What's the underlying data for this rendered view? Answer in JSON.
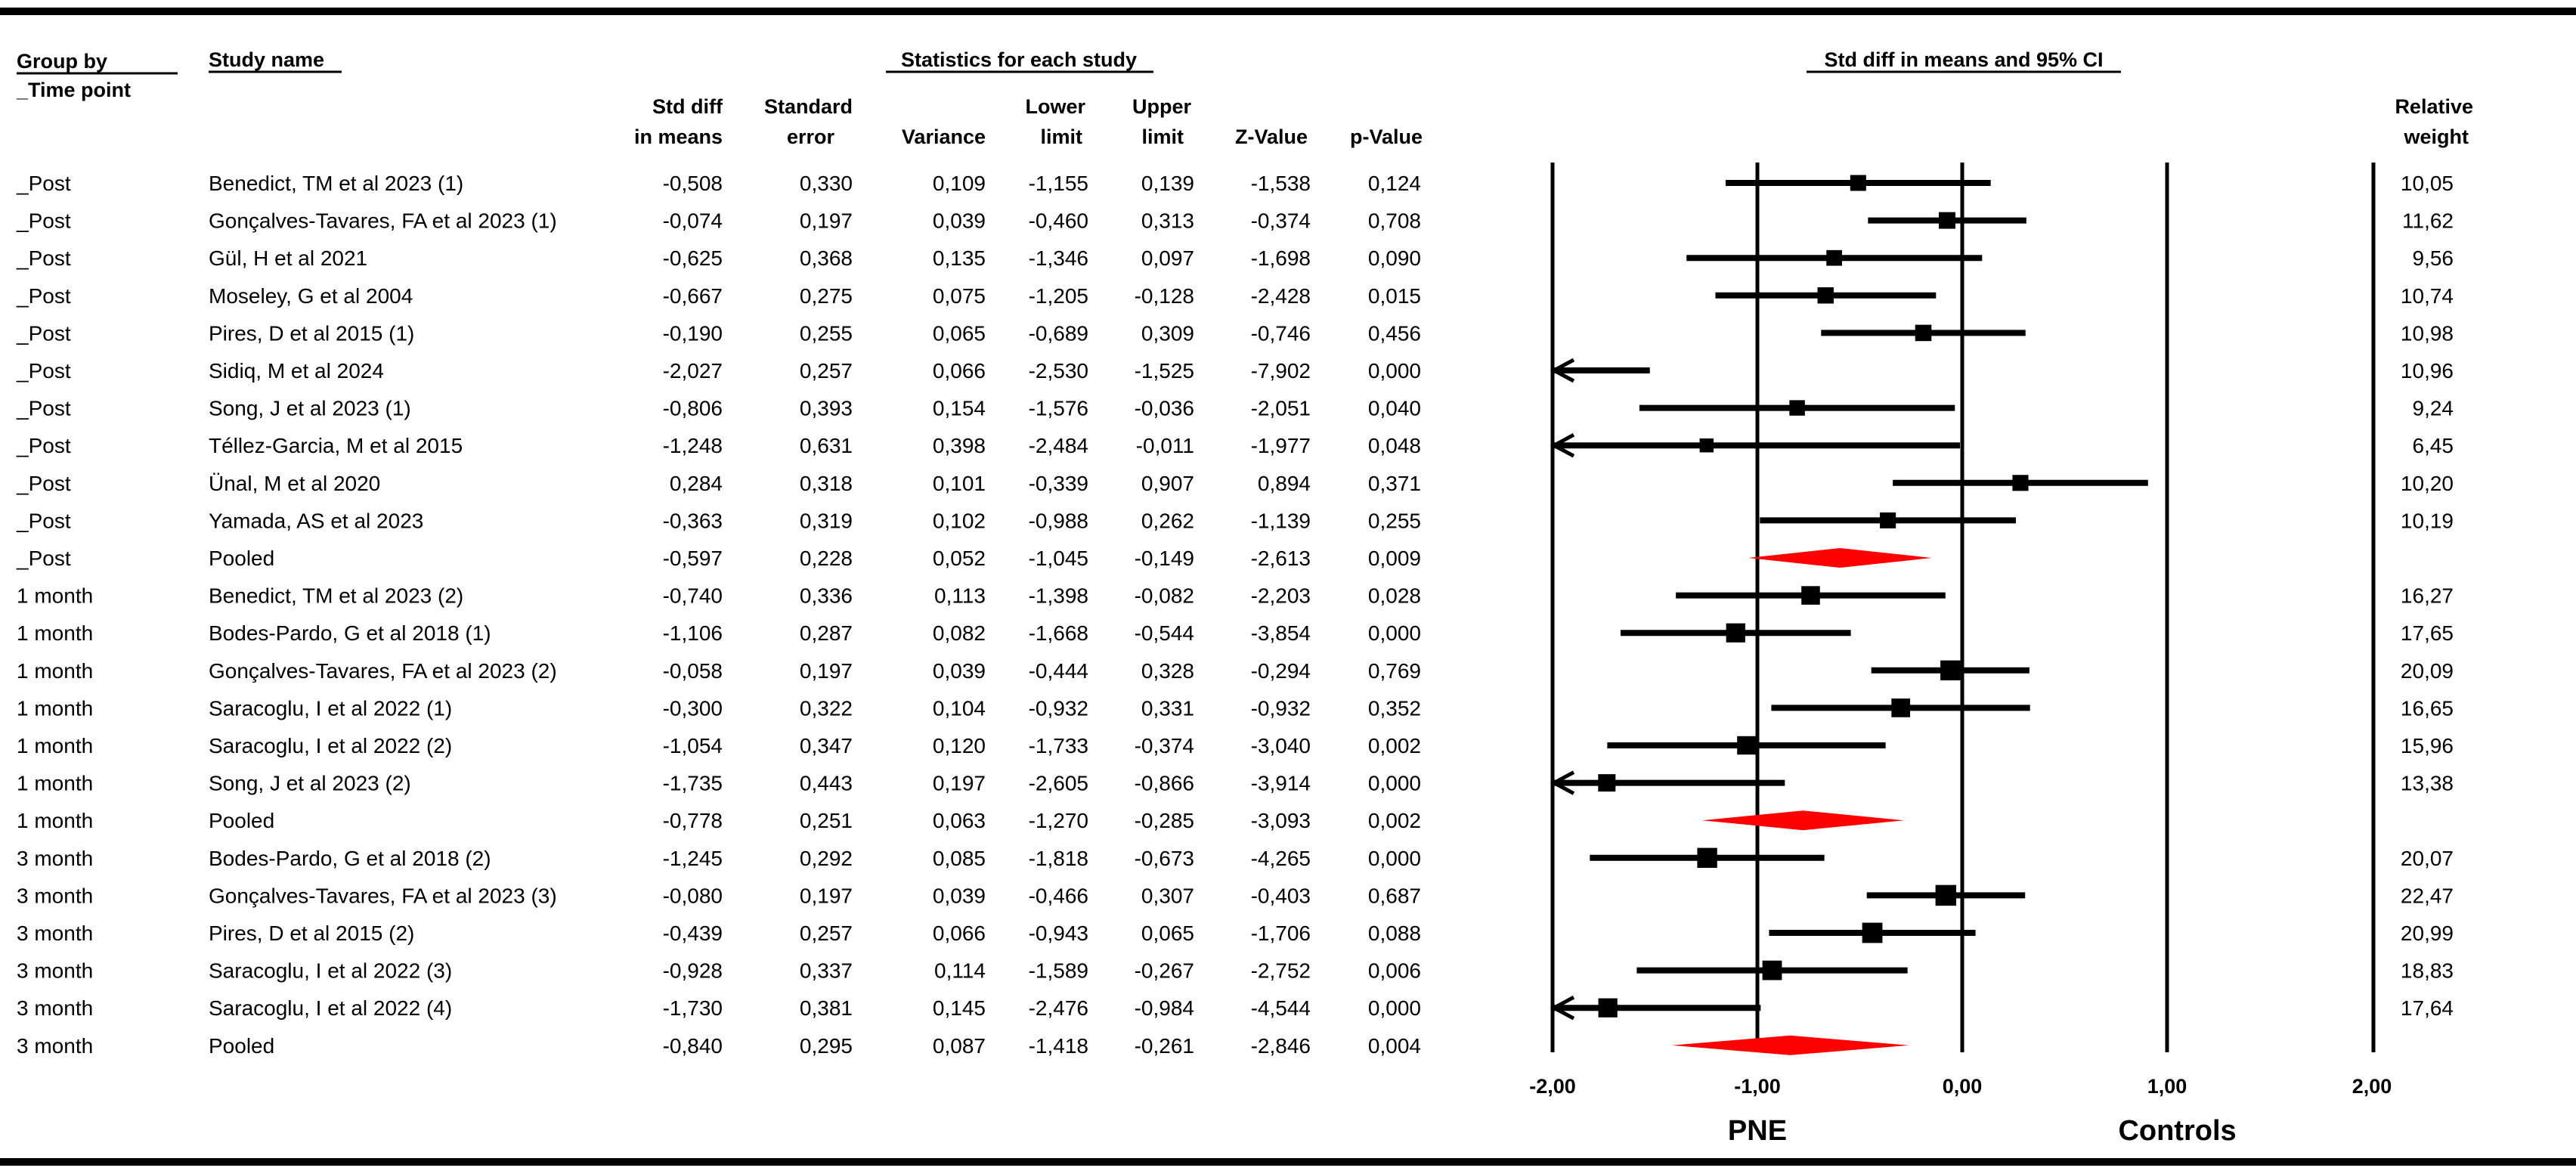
{
  "chart_data": {
    "type": "forest",
    "headers": {
      "group": "Group by",
      "group_sub": "_Time point",
      "study": "Study name",
      "stats": "Statistics for each study",
      "plot": "Std diff in means and 95% CI",
      "std_diff_1": "Std diff",
      "std_diff_2": "in means",
      "se_1": "Standard",
      "se_2": "error",
      "variance": "Variance",
      "lower_1": "Lower",
      "lower_2": "limit",
      "upper_1": "Upper",
      "upper_2": "limit",
      "z": "Z-Value",
      "p": "p-Value",
      "weight_1": "Relative",
      "weight_2": "weight"
    },
    "x_axis": {
      "min": -2,
      "max": 2,
      "ticks": [
        -2,
        -1,
        0,
        1,
        2
      ],
      "tick_labels": [
        "-2,00",
        "-1,00",
        "0,00",
        "1,00",
        "2,00"
      ]
    },
    "favours_left": "PNE",
    "favours_right": "Controls",
    "rows": [
      {
        "group": "_Post",
        "study": "Benedict, TM et al 2023 (1)",
        "smd": "-0,508",
        "se": "0,330",
        "var": "0,109",
        "lower": "-1,155",
        "upper": "0,139",
        "z": "-1,538",
        "p": "0,124",
        "weight": "10,05",
        "kind": "study",
        "v": [
          -0.508,
          -1.155,
          0.139,
          10.05
        ]
      },
      {
        "group": "_Post",
        "study": "Gonçalves-Tavares, FA et al 2023 (1)",
        "smd": "-0,074",
        "se": "0,197",
        "var": "0,039",
        "lower": "-0,460",
        "upper": "0,313",
        "z": "-0,374",
        "p": "0,708",
        "weight": "11,62",
        "kind": "study",
        "v": [
          -0.074,
          -0.46,
          0.313,
          11.62
        ]
      },
      {
        "group": "_Post",
        "study": "Gül, H et al 2021",
        "smd": "-0,625",
        "se": "0,368",
        "var": "0,135",
        "lower": "-1,346",
        "upper": "0,097",
        "z": "-1,698",
        "p": "0,090",
        "weight": "9,56",
        "kind": "study",
        "v": [
          -0.625,
          -1.346,
          0.097,
          9.56
        ]
      },
      {
        "group": "_Post",
        "study": "Moseley, G et al 2004",
        "smd": "-0,667",
        "se": "0,275",
        "var": "0,075",
        "lower": "-1,205",
        "upper": "-0,128",
        "z": "-2,428",
        "p": "0,015",
        "weight": "10,74",
        "kind": "study",
        "v": [
          -0.667,
          -1.205,
          -0.128,
          10.74
        ]
      },
      {
        "group": "_Post",
        "study": "Pires, D et al 2015 (1)",
        "smd": "-0,190",
        "se": "0,255",
        "var": "0,065",
        "lower": "-0,689",
        "upper": "0,309",
        "z": "-0,746",
        "p": "0,456",
        "weight": "10,98",
        "kind": "study",
        "v": [
          -0.19,
          -0.689,
          0.309,
          10.98
        ]
      },
      {
        "group": "_Post",
        "study": "Sidiq, M et al 2024",
        "smd": "-2,027",
        "se": "0,257",
        "var": "0,066",
        "lower": "-2,530",
        "upper": "-1,525",
        "z": "-7,902",
        "p": "0,000",
        "weight": "10,96",
        "kind": "study",
        "v": [
          -2.027,
          -2.53,
          -1.525,
          10.96
        ]
      },
      {
        "group": "_Post",
        "study": "Song, J et al 2023 (1)",
        "smd": "-0,806",
        "se": "0,393",
        "var": "0,154",
        "lower": "-1,576",
        "upper": "-0,036",
        "z": "-2,051",
        "p": "0,040",
        "weight": "9,24",
        "kind": "study",
        "v": [
          -0.806,
          -1.576,
          -0.036,
          9.24
        ]
      },
      {
        "group": "_Post",
        "study": "Téllez-Garcia, M et al 2015",
        "smd": "-1,248",
        "se": "0,631",
        "var": "0,398",
        "lower": "-2,484",
        "upper": "-0,011",
        "z": "-1,977",
        "p": "0,048",
        "weight": "6,45",
        "kind": "study",
        "v": [
          -1.248,
          -2.484,
          -0.011,
          6.45
        ]
      },
      {
        "group": "_Post",
        "study": "Ünal, M et al 2020",
        "smd": "0,284",
        "se": "0,318",
        "var": "0,101",
        "lower": "-0,339",
        "upper": "0,907",
        "z": "0,894",
        "p": "0,371",
        "weight": "10,20",
        "kind": "study",
        "v": [
          0.284,
          -0.339,
          0.907,
          10.2
        ]
      },
      {
        "group": "_Post",
        "study": "Yamada, AS et al 2023",
        "smd": "-0,363",
        "se": "0,319",
        "var": "0,102",
        "lower": "-0,988",
        "upper": "0,262",
        "z": "-1,139",
        "p": "0,255",
        "weight": "10,19",
        "kind": "study",
        "v": [
          -0.363,
          -0.988,
          0.262,
          10.19
        ]
      },
      {
        "group": "_Post",
        "study": "Pooled",
        "smd": "-0,597",
        "se": "0,228",
        "var": "0,052",
        "lower": "-1,045",
        "upper": "-0,149",
        "z": "-2,613",
        "p": "0,009",
        "weight": "",
        "kind": "pooled",
        "v": [
          -0.597,
          -1.045,
          -0.149,
          0
        ]
      },
      {
        "group": "1 month",
        "study": "Benedict, TM et al 2023 (2)",
        "smd": "-0,740",
        "se": "0,336",
        "var": "0,113",
        "lower": "-1,398",
        "upper": "-0,082",
        "z": "-2,203",
        "p": "0,028",
        "weight": "16,27",
        "kind": "study",
        "v": [
          -0.74,
          -1.398,
          -0.082,
          16.27
        ]
      },
      {
        "group": "1 month",
        "study": "Bodes-Pardo, G et al 2018 (1)",
        "smd": "-1,106",
        "se": "0,287",
        "var": "0,082",
        "lower": "-1,668",
        "upper": "-0,544",
        "z": "-3,854",
        "p": "0,000",
        "weight": "17,65",
        "kind": "study",
        "v": [
          -1.106,
          -1.668,
          -0.544,
          17.65
        ]
      },
      {
        "group": "1 month",
        "study": "Gonçalves-Tavares, FA et al 2023 (2)",
        "smd": "-0,058",
        "se": "0,197",
        "var": "0,039",
        "lower": "-0,444",
        "upper": "0,328",
        "z": "-0,294",
        "p": "0,769",
        "weight": "20,09",
        "kind": "study",
        "v": [
          -0.058,
          -0.444,
          0.328,
          20.09
        ]
      },
      {
        "group": "1 month",
        "study": "Saracoglu, I et al 2022 (1)",
        "smd": "-0,300",
        "se": "0,322",
        "var": "0,104",
        "lower": "-0,932",
        "upper": "0,331",
        "z": "-0,932",
        "p": "0,352",
        "weight": "16,65",
        "kind": "study",
        "v": [
          -0.3,
          -0.932,
          0.331,
          16.65
        ]
      },
      {
        "group": "1 month",
        "study": "Saracoglu, I et al 2022 (2)",
        "smd": "-1,054",
        "se": "0,347",
        "var": "0,120",
        "lower": "-1,733",
        "upper": "-0,374",
        "z": "-3,040",
        "p": "0,002",
        "weight": "15,96",
        "kind": "study",
        "v": [
          -1.054,
          -1.733,
          -0.374,
          15.96
        ]
      },
      {
        "group": "1 month",
        "study": "Song, J et al 2023 (2)",
        "smd": "-1,735",
        "se": "0,443",
        "var": "0,197",
        "lower": "-2,605",
        "upper": "-0,866",
        "z": "-3,914",
        "p": "0,000",
        "weight": "13,38",
        "kind": "study",
        "v": [
          -1.735,
          -2.605,
          -0.866,
          13.38
        ]
      },
      {
        "group": "1 month",
        "study": "Pooled",
        "smd": "-0,778",
        "se": "0,251",
        "var": "0,063",
        "lower": "-1,270",
        "upper": "-0,285",
        "z": "-3,093",
        "p": "0,002",
        "weight": "",
        "kind": "pooled",
        "v": [
          -0.778,
          -1.27,
          -0.285,
          0
        ]
      },
      {
        "group": "3 month",
        "study": "Bodes-Pardo, G et al 2018 (2)",
        "smd": "-1,245",
        "se": "0,292",
        "var": "0,085",
        "lower": "-1,818",
        "upper": "-0,673",
        "z": "-4,265",
        "p": "0,000",
        "weight": "20,07",
        "kind": "study",
        "v": [
          -1.245,
          -1.818,
          -0.673,
          20.07
        ]
      },
      {
        "group": "3 month",
        "study": "Gonçalves-Tavares, FA et al 2023 (3)",
        "smd": "-0,080",
        "se": "0,197",
        "var": "0,039",
        "lower": "-0,466",
        "upper": "0,307",
        "z": "-0,403",
        "p": "0,687",
        "weight": "22,47",
        "kind": "study",
        "v": [
          -0.08,
          -0.466,
          0.307,
          22.47
        ]
      },
      {
        "group": "3 month",
        "study": "Pires, D et al 2015 (2)",
        "smd": "-0,439",
        "se": "0,257",
        "var": "0,066",
        "lower": "-0,943",
        "upper": "0,065",
        "z": "-1,706",
        "p": "0,088",
        "weight": "20,99",
        "kind": "study",
        "v": [
          -0.439,
          -0.943,
          0.065,
          20.99
        ]
      },
      {
        "group": "3 month",
        "study": "Saracoglu, I et al 2022 (3)",
        "smd": "-0,928",
        "se": "0,337",
        "var": "0,114",
        "lower": "-1,589",
        "upper": "-0,267",
        "z": "-2,752",
        "p": "0,006",
        "weight": "18,83",
        "kind": "study",
        "v": [
          -0.928,
          -1.589,
          -0.267,
          18.83
        ]
      },
      {
        "group": "3 month",
        "study": "Saracoglu, I et al 2022 (4)",
        "smd": "-1,730",
        "se": "0,381",
        "var": "0,145",
        "lower": "-2,476",
        "upper": "-0,984",
        "z": "-4,544",
        "p": "0,000",
        "weight": "17,64",
        "kind": "study",
        "v": [
          -1.73,
          -2.476,
          -0.984,
          17.64
        ]
      },
      {
        "group": "3 month",
        "study": "Pooled",
        "smd": "-0,840",
        "se": "0,295",
        "var": "0,087",
        "lower": "-1,418",
        "upper": "-0,261",
        "z": "-2,846",
        "p": "0,004",
        "weight": "",
        "kind": "pooled",
        "v": [
          -0.84,
          -1.418,
          -0.261,
          0
        ]
      }
    ],
    "colors": {
      "marker": "#000000",
      "pooled": "#ff0000",
      "line": "#000000"
    }
  }
}
